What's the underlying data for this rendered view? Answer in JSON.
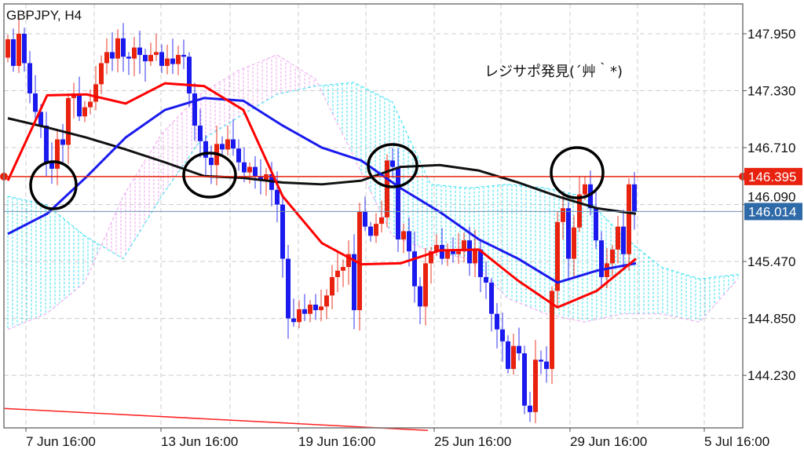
{
  "window": {
    "title": "GBPJPY, H4"
  },
  "annotation": "レジサポ発見(´艸｀*)",
  "chart_data": {
    "type": "candlestick",
    "symbol": "GBPJPY",
    "timeframe": "H4",
    "ylim": [
      143.65,
      148.24
    ],
    "grid": true,
    "y_ticks": [
      "147.950",
      "147.330",
      "146.710",
      "146.090",
      "145.470",
      "144.850",
      "144.230"
    ],
    "y_tick_values": [
      147.95,
      147.33,
      146.71,
      146.09,
      145.47,
      144.85,
      144.23
    ],
    "x_ticks": [
      "7 Jun 16:00",
      "13 Jun 16:00",
      "19 Jun 16:00",
      "25 Jun 16:00",
      "29 Jun 16:00",
      "5 Jul 16:00"
    ],
    "colors": {
      "bull": "#e8220f",
      "bear": "#1a1aee",
      "ma_fast": "#ff0000",
      "ma_mid": "#1a1aee",
      "ma_slow": "#111111",
      "cloud_up": "#33e0f0",
      "cloud_down": "#f0a0f0"
    },
    "closes": [
      147.89,
      147.6,
      147.95,
      147.63,
      147.3,
      147.1,
      146.95,
      146.55,
      146.48,
      146.8,
      146.74,
      147.25,
      147.3,
      147.05,
      147.15,
      147.21,
      147.4,
      147.63,
      147.75,
      147.68,
      147.9,
      147.7,
      147.68,
      147.8,
      147.72,
      147.65,
      147.72,
      147.75,
      147.6,
      147.68,
      147.62,
      147.72,
      147.7,
      147.3,
      146.95,
      146.78,
      146.6,
      146.52,
      146.75,
      146.69,
      146.8,
      146.7,
      146.55,
      146.44,
      146.5,
      146.4,
      146.35,
      146.42,
      146.25,
      146.09,
      145.5,
      144.85,
      144.81,
      144.95,
      144.9,
      145.0,
      144.94,
      144.98,
      145.1,
      145.3,
      145.37,
      145.41,
      145.55,
      144.94,
      146.01,
      145.85,
      145.75,
      145.88,
      145.95,
      146.57,
      146.5,
      145.71,
      145.8,
      145.58,
      145.2,
      144.98,
      145.45,
      145.58,
      145.65,
      145.5,
      145.6,
      145.55,
      145.58,
      145.7,
      145.45,
      145.6,
      145.3,
      145.24,
      144.9,
      144.73,
      144.6,
      144.3,
      144.55,
      144.47,
      143.9,
      143.83,
      144.4,
      144.38,
      144.3,
      145.15,
      145.9,
      146.05,
      145.5,
      145.84,
      146.2,
      146.31,
      146.05,
      145.7,
      145.3,
      145.45,
      145.6,
      145.85,
      145.55,
      146.31,
      146.01
    ],
    "ma_fast": [
      146.35,
      147.28,
      147.29,
      147.19,
      147.41,
      147.38,
      147.12,
      146.18,
      145.67,
      145.44,
      145.45,
      145.59,
      145.6,
      145.26,
      144.97,
      145.15,
      145.5
    ],
    "ma_mid": [
      145.77,
      145.99,
      146.39,
      146.82,
      147.12,
      147.25,
      147.22,
      146.95,
      146.71,
      146.57,
      146.27,
      146.01,
      145.71,
      145.5,
      145.24,
      145.37,
      145.45
    ],
    "ma_slow": [
      147.03,
      146.93,
      146.82,
      146.69,
      146.55,
      146.4,
      146.38,
      146.33,
      146.31,
      146.35,
      146.5,
      146.52,
      146.46,
      146.33,
      146.18,
      146.05,
      145.99
    ],
    "cloud_span_a": [
      146.18,
      146.09,
      145.75,
      145.5,
      146.18,
      146.78,
      147.04,
      147.29,
      147.38,
      147.42,
      147.21,
      146.31,
      146.27,
      146.31,
      146.27,
      146.18,
      145.75,
      145.41,
      145.28,
      145.33
    ],
    "cloud_span_b": [
      144.73,
      144.9,
      145.24,
      146.18,
      146.86,
      147.29,
      147.55,
      147.72,
      147.46,
      146.61,
      145.75,
      145.58,
      145.5,
      145.07,
      144.9,
      144.81,
      144.9,
      144.9,
      144.81,
      145.28
    ],
    "trendline": [
      143.87,
      143.63
    ],
    "horizontal_line": {
      "value": 146.395,
      "label": "146.395",
      "color": "#e8220f"
    },
    "bid_line": {
      "value": 146.014,
      "label": "146.014",
      "color": "#2f6aa8"
    }
  }
}
